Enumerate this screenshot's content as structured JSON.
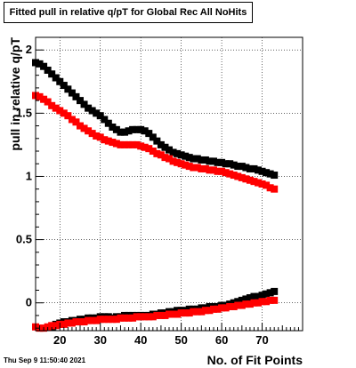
{
  "chart_data": {
    "type": "scatter",
    "title": "Fitted pull in relative q/pT for Global Rec All NoHits",
    "xlabel": "No. of Fit Points",
    "ylabel": "pull in relative q/pT",
    "xlim": [
      14,
      80
    ],
    "ylim": [
      -0.22,
      2.1
    ],
    "xticks": [
      "20",
      "30",
      "40",
      "50",
      "60",
      "70"
    ],
    "yticks": [
      "0",
      "0.5",
      "1",
      "1.5",
      "2"
    ],
    "grid": true,
    "series": [
      {
        "color": "#000000",
        "x": [
          14,
          15,
          16,
          17,
          18,
          19,
          20,
          21,
          22,
          23,
          24,
          25,
          26,
          27,
          28,
          29,
          30,
          31,
          32,
          33,
          34,
          35,
          36,
          37,
          38,
          39,
          40,
          41,
          42,
          43,
          44,
          45,
          46,
          47,
          48,
          49,
          50,
          51,
          52,
          53,
          54,
          55,
          56,
          57,
          58,
          59,
          60,
          61,
          62,
          63,
          64,
          65,
          66,
          67,
          68,
          69,
          70,
          71,
          72,
          73
        ],
        "y": [
          1.9,
          1.89,
          1.87,
          1.84,
          1.81,
          1.78,
          1.75,
          1.72,
          1.69,
          1.66,
          1.63,
          1.6,
          1.57,
          1.54,
          1.52,
          1.5,
          1.48,
          1.45,
          1.42,
          1.39,
          1.37,
          1.35,
          1.35,
          1.36,
          1.37,
          1.37,
          1.37,
          1.36,
          1.34,
          1.31,
          1.28,
          1.25,
          1.23,
          1.21,
          1.19,
          1.18,
          1.17,
          1.16,
          1.15,
          1.14,
          1.14,
          1.13,
          1.13,
          1.12,
          1.12,
          1.11,
          1.11,
          1.1,
          1.1,
          1.09,
          1.08,
          1.08,
          1.07,
          1.06,
          1.06,
          1.05,
          1.04,
          1.03,
          1.02,
          1.01
        ]
      },
      {
        "color": "#ff0000",
        "x": [
          14,
          15,
          16,
          17,
          18,
          19,
          20,
          21,
          22,
          23,
          24,
          25,
          26,
          27,
          28,
          29,
          30,
          31,
          32,
          33,
          34,
          35,
          36,
          37,
          38,
          39,
          40,
          41,
          42,
          43,
          44,
          45,
          46,
          47,
          48,
          49,
          50,
          51,
          52,
          53,
          54,
          55,
          56,
          57,
          58,
          59,
          60,
          61,
          62,
          63,
          64,
          65,
          66,
          67,
          68,
          69,
          70,
          71,
          72,
          73
        ],
        "y": [
          1.64,
          1.63,
          1.61,
          1.59,
          1.56,
          1.54,
          1.52,
          1.5,
          1.48,
          1.45,
          1.43,
          1.4,
          1.38,
          1.36,
          1.34,
          1.32,
          1.31,
          1.29,
          1.28,
          1.27,
          1.26,
          1.25,
          1.25,
          1.25,
          1.25,
          1.25,
          1.24,
          1.23,
          1.22,
          1.2,
          1.18,
          1.17,
          1.15,
          1.14,
          1.12,
          1.11,
          1.1,
          1.09,
          1.08,
          1.07,
          1.07,
          1.06,
          1.06,
          1.05,
          1.05,
          1.04,
          1.04,
          1.03,
          1.02,
          1.01,
          1.0,
          0.99,
          0.98,
          0.97,
          0.96,
          0.95,
          0.94,
          0.93,
          0.91,
          0.9
        ]
      },
      {
        "color": "#000000",
        "x": [
          18,
          19,
          20,
          21,
          22,
          23,
          24,
          25,
          26,
          27,
          28,
          29,
          30,
          31,
          32,
          33,
          34,
          35,
          36,
          37,
          38,
          39,
          40,
          41,
          42,
          43,
          44,
          45,
          46,
          47,
          48,
          49,
          50,
          51,
          52,
          53,
          54,
          55,
          56,
          57,
          58,
          59,
          60,
          61,
          62,
          63,
          64,
          65,
          66,
          67,
          68,
          69,
          70,
          71,
          72,
          73
        ],
        "y": [
          -0.19,
          -0.17,
          -0.16,
          -0.15,
          -0.15,
          -0.14,
          -0.14,
          -0.13,
          -0.13,
          -0.12,
          -0.12,
          -0.12,
          -0.11,
          -0.11,
          -0.11,
          -0.12,
          -0.11,
          -0.11,
          -0.1,
          -0.1,
          -0.1,
          -0.1,
          -0.1,
          -0.1,
          -0.1,
          -0.09,
          -0.09,
          -0.08,
          -0.08,
          -0.07,
          -0.07,
          -0.06,
          -0.06,
          -0.06,
          -0.05,
          -0.05,
          -0.05,
          -0.04,
          -0.04,
          -0.03,
          -0.03,
          -0.03,
          -0.02,
          -0.02,
          -0.01,
          0.0,
          0.01,
          0.02,
          0.03,
          0.04,
          0.05,
          0.05,
          0.06,
          0.07,
          0.08,
          0.09
        ]
      },
      {
        "color": "#ff0000",
        "x": [
          14,
          15,
          16,
          17,
          18,
          19,
          20,
          21,
          22,
          23,
          24,
          25,
          26,
          27,
          28,
          29,
          30,
          31,
          32,
          33,
          34,
          35,
          36,
          37,
          38,
          39,
          40,
          41,
          42,
          43,
          44,
          45,
          46,
          47,
          48,
          49,
          50,
          51,
          52,
          53,
          54,
          55,
          56,
          57,
          58,
          59,
          60,
          61,
          62,
          63,
          64,
          65,
          66,
          67,
          68,
          69,
          70,
          71,
          72,
          73
        ],
        "y": [
          -0.19,
          -0.2,
          -0.2,
          -0.19,
          -0.18,
          -0.18,
          -0.17,
          -0.17,
          -0.16,
          -0.16,
          -0.15,
          -0.15,
          -0.15,
          -0.14,
          -0.14,
          -0.14,
          -0.13,
          -0.13,
          -0.13,
          -0.13,
          -0.13,
          -0.12,
          -0.12,
          -0.12,
          -0.12,
          -0.11,
          -0.11,
          -0.11,
          -0.11,
          -0.11,
          -0.1,
          -0.1,
          -0.1,
          -0.09,
          -0.09,
          -0.09,
          -0.08,
          -0.08,
          -0.08,
          -0.07,
          -0.07,
          -0.07,
          -0.06,
          -0.06,
          -0.05,
          -0.05,
          -0.04,
          -0.04,
          -0.03,
          -0.03,
          -0.02,
          -0.02,
          -0.01,
          -0.01,
          0.0,
          0.0,
          0.01,
          0.01,
          0.02,
          0.02
        ]
      }
    ]
  },
  "footer": {
    "timestamp": "Thu Sep  9 11:50:40 2021"
  }
}
